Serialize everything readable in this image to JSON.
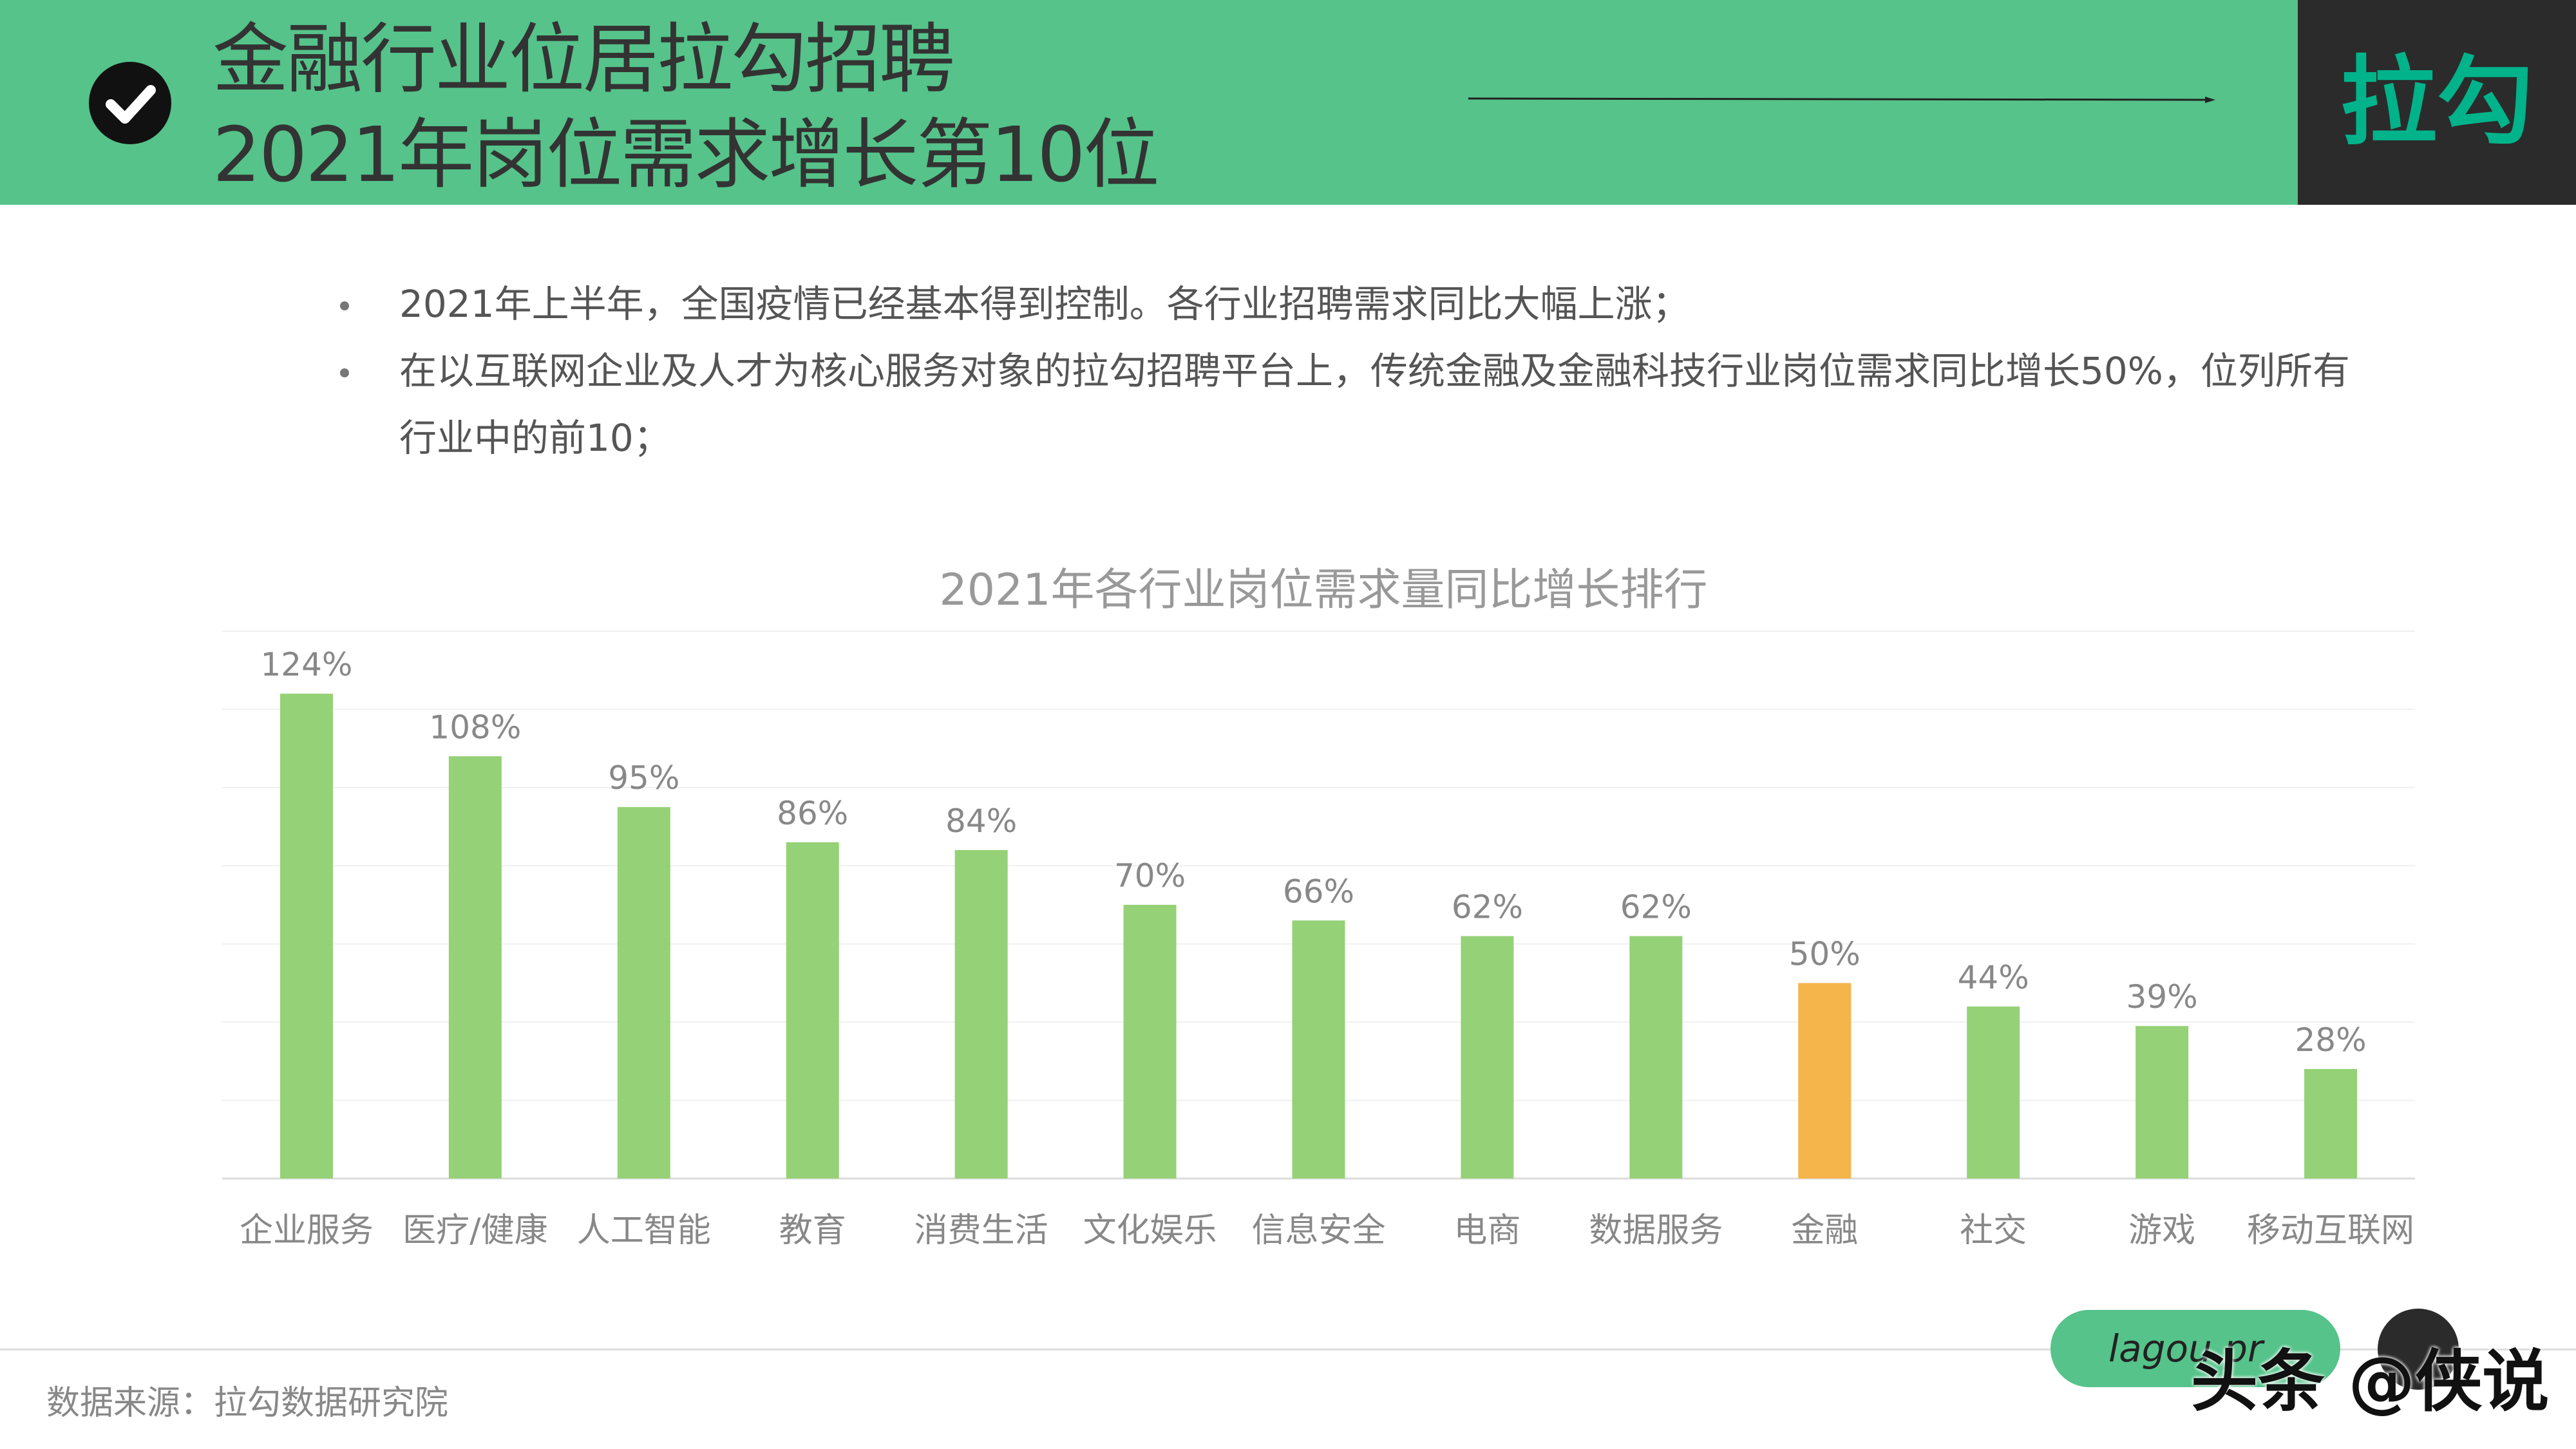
{
  "header": {
    "title_line1": "金融行业位居拉勾招聘",
    "title_line2": "2021年岗位需求增长第10位",
    "brand": "拉勾",
    "icon": "check-circle-icon",
    "band_color": "#55c38a"
  },
  "bullets": [
    "2021年上半年，全国疫情已经基本得到控制。各行业招聘需求同比大幅上涨；",
    "在以互联网企业及人才为核心服务对象的拉勾招聘平台上，传统金融及金融科技行业岗位需求同比增长50%，位列所有行业中的前10；"
  ],
  "chart_data": {
    "type": "bar",
    "title": "2021年各行业岗位需求量同比增长排行",
    "categories": [
      "企业服务",
      "医疗/健康",
      "人工智能",
      "教育",
      "消费生活",
      "文化娱乐",
      "信息安全",
      "电商",
      "数据服务",
      "金融",
      "社交",
      "游戏",
      "移动互联网"
    ],
    "values": [
      124,
      108,
      95,
      86,
      84,
      70,
      66,
      62,
      62,
      50,
      44,
      39,
      28
    ],
    "labels": [
      "124%",
      "108%",
      "95%",
      "86%",
      "84%",
      "70%",
      "66%",
      "62%",
      "62%",
      "50%",
      "44%",
      "39%",
      "28%"
    ],
    "unit": "%",
    "ylim": [
      0,
      140
    ],
    "grid": true,
    "legend": "none",
    "bar_color": "#95d176",
    "highlight_category": "金融",
    "highlight_color": "#f5b54a"
  },
  "footer": {
    "source": "数据来源：拉勾数据研究院",
    "pill_text": "lagou.pr",
    "watermark": "头条 @侠说"
  }
}
